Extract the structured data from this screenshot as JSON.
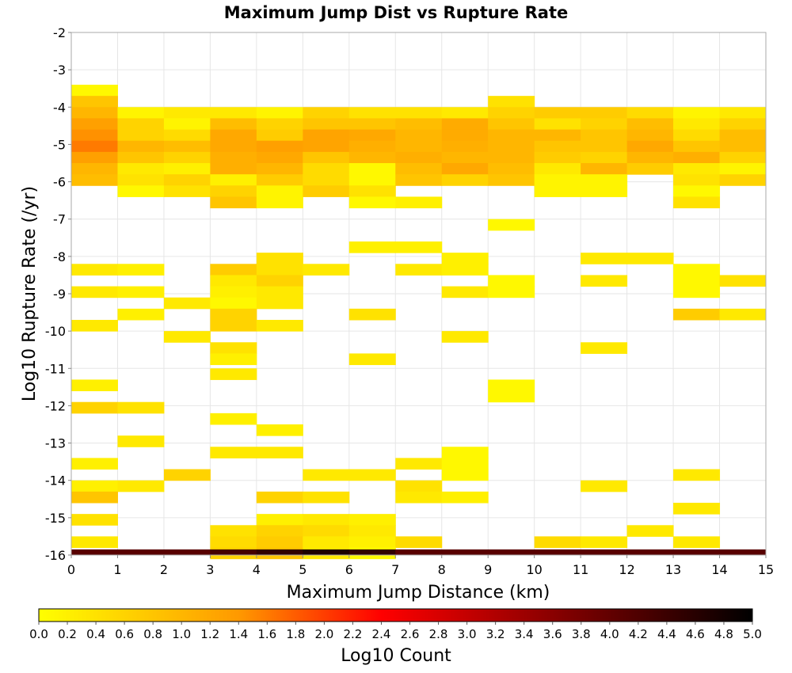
{
  "chart_data": {
    "type": "heatmap",
    "title": "Maximum Jump Dist vs Rupture Rate",
    "xlabel": "Maximum Jump Distance (km)",
    "ylabel": "Log10 Rupture Rate (/yr)",
    "xlim": [
      0,
      15
    ],
    "ylim": [
      -16,
      -2
    ],
    "xticks": [
      "0",
      "1",
      "2",
      "3",
      "4",
      "5",
      "6",
      "7",
      "8",
      "9",
      "10",
      "11",
      "12",
      "13",
      "14",
      "15"
    ],
    "yticks": [
      "-2",
      "-3",
      "-4",
      "-5",
      "-6",
      "-7",
      "-8",
      "-9",
      "-10",
      "-11",
      "-12",
      "-13",
      "-14",
      "-15",
      "-16"
    ],
    "x_bin_width": 1,
    "y_bin_height": 0.3,
    "colorbar": {
      "label": "Log10 Count",
      "min": 0.0,
      "max": 5.0,
      "ticks": [
        "0.0",
        "0.2",
        "0.4",
        "0.6",
        "0.8",
        "1.0",
        "1.2",
        "1.4",
        "1.6",
        "1.8",
        "2.0",
        "2.2",
        "2.4",
        "2.6",
        "2.8",
        "3.0",
        "3.2",
        "3.4",
        "3.6",
        "3.8",
        "4.0",
        "4.2",
        "4.4",
        "4.6",
        "4.8",
        "5.0"
      ],
      "colors": [
        "#ffff00",
        "#ff9900",
        "#ff0000",
        "#000000"
      ]
    },
    "cells": [
      [
        0,
        -3.55,
        0.1
      ],
      [
        0,
        -3.85,
        0.8
      ],
      [
        0,
        -4.15,
        1.0
      ],
      [
        0,
        -4.45,
        1.3
      ],
      [
        0,
        -4.75,
        1.45
      ],
      [
        0,
        -5.05,
        1.6
      ],
      [
        0,
        -5.35,
        1.3
      ],
      [
        0,
        -5.65,
        1.0
      ],
      [
        0,
        -5.95,
        0.9
      ],
      [
        1,
        -4.15,
        0.15
      ],
      [
        1,
        -4.45,
        0.6
      ],
      [
        1,
        -4.75,
        0.6
      ],
      [
        1,
        -5.05,
        1.0
      ],
      [
        1,
        -5.35,
        0.8
      ],
      [
        1,
        -5.65,
        0.3
      ],
      [
        1,
        -5.95,
        0.4
      ],
      [
        1,
        -6.25,
        0.1
      ],
      [
        2,
        -4.15,
        0.3
      ],
      [
        2,
        -4.45,
        0.15
      ],
      [
        2,
        -4.75,
        0.5
      ],
      [
        2,
        -5.05,
        0.9
      ],
      [
        2,
        -5.35,
        0.6
      ],
      [
        2,
        -5.65,
        0.2
      ],
      [
        2,
        -5.95,
        0.6
      ],
      [
        2,
        -6.25,
        0.4
      ],
      [
        3,
        -4.15,
        0.3
      ],
      [
        3,
        -4.45,
        0.9
      ],
      [
        3,
        -4.75,
        1.2
      ],
      [
        3,
        -5.05,
        1.2
      ],
      [
        3,
        -5.35,
        1.1
      ],
      [
        3,
        -5.65,
        1.1
      ],
      [
        3,
        -5.95,
        0.2
      ],
      [
        3,
        -6.25,
        0.6
      ],
      [
        3,
        -6.55,
        0.8
      ],
      [
        4,
        -4.15,
        0.15
      ],
      [
        4,
        -4.45,
        0.6
      ],
      [
        4,
        -4.75,
        0.7
      ],
      [
        4,
        -5.05,
        1.3
      ],
      [
        4,
        -5.35,
        1.2
      ],
      [
        4,
        -5.65,
        1.0
      ],
      [
        4,
        -5.95,
        0.7
      ],
      [
        4,
        -6.25,
        0.15
      ],
      [
        4,
        -6.55,
        0.15
      ],
      [
        5,
        -4.15,
        0.6
      ],
      [
        5,
        -4.45,
        0.8
      ],
      [
        5,
        -4.75,
        1.25
      ],
      [
        5,
        -5.05,
        1.25
      ],
      [
        5,
        -5.35,
        0.8
      ],
      [
        5,
        -5.65,
        0.5
      ],
      [
        5,
        -5.95,
        0.5
      ],
      [
        5,
        -6.25,
        0.7
      ],
      [
        6,
        -4.15,
        0.4
      ],
      [
        6,
        -4.45,
        0.8
      ],
      [
        6,
        -4.75,
        1.2
      ],
      [
        6,
        -5.05,
        1.1
      ],
      [
        6,
        -5.35,
        1.0
      ],
      [
        6,
        -5.65,
        0.1
      ],
      [
        6,
        -5.95,
        0.1
      ],
      [
        6,
        -6.25,
        0.4
      ],
      [
        6,
        -6.55,
        0.1
      ],
      [
        7,
        -4.15,
        0.4
      ],
      [
        7,
        -4.45,
        0.9
      ],
      [
        7,
        -4.75,
        1.0
      ],
      [
        7,
        -5.05,
        1.0
      ],
      [
        7,
        -5.35,
        1.1
      ],
      [
        7,
        -5.65,
        0.9
      ],
      [
        7,
        -5.95,
        0.8
      ],
      [
        7,
        -6.55,
        0.2
      ],
      [
        8,
        -4.15,
        0.3
      ],
      [
        8,
        -4.45,
        1.15
      ],
      [
        8,
        -4.75,
        1.15
      ],
      [
        8,
        -5.05,
        1.1
      ],
      [
        8,
        -5.35,
        1.0
      ],
      [
        8,
        -5.65,
        1.2
      ],
      [
        8,
        -5.95,
        0.6
      ],
      [
        9,
        -3.85,
        0.4
      ],
      [
        9,
        -4.15,
        0.6
      ],
      [
        9,
        -4.45,
        0.8
      ],
      [
        9,
        -4.75,
        1.0
      ],
      [
        9,
        -5.05,
        1.0
      ],
      [
        9,
        -5.35,
        1.0
      ],
      [
        9,
        -5.65,
        0.9
      ],
      [
        9,
        -5.95,
        0.8
      ],
      [
        10,
        -4.15,
        0.7
      ],
      [
        10,
        -4.45,
        0.4
      ],
      [
        10,
        -4.75,
        1.0
      ],
      [
        10,
        -5.05,
        0.8
      ],
      [
        10,
        -5.35,
        0.7
      ],
      [
        10,
        -5.65,
        0.3
      ],
      [
        10,
        -5.95,
        0.15
      ],
      [
        10,
        -6.25,
        0.15
      ],
      [
        11,
        -4.15,
        0.7
      ],
      [
        11,
        -4.45,
        0.6
      ],
      [
        11,
        -4.75,
        0.8
      ],
      [
        11,
        -5.05,
        0.8
      ],
      [
        11,
        -5.35,
        0.6
      ],
      [
        11,
        -5.65,
        1.0
      ],
      [
        11,
        -5.95,
        0.15
      ],
      [
        11,
        -6.25,
        0.15
      ],
      [
        12,
        -4.15,
        0.5
      ],
      [
        12,
        -4.45,
        0.9
      ],
      [
        12,
        -4.75,
        1.0
      ],
      [
        12,
        -5.05,
        1.2
      ],
      [
        12,
        -5.35,
        1.0
      ],
      [
        12,
        -5.65,
        0.7
      ],
      [
        13,
        -4.15,
        0.15
      ],
      [
        13,
        -4.45,
        0.3
      ],
      [
        13,
        -4.75,
        0.5
      ],
      [
        13,
        -5.05,
        0.8
      ],
      [
        13,
        -5.35,
        1.1
      ],
      [
        13,
        -5.65,
        0.3
      ],
      [
        13,
        -5.95,
        0.4
      ],
      [
        13,
        -6.25,
        0.1
      ],
      [
        13,
        -6.55,
        0.4
      ],
      [
        14,
        -4.15,
        0.3
      ],
      [
        14,
        -4.45,
        0.6
      ],
      [
        14,
        -4.75,
        0.9
      ],
      [
        14,
        -5.05,
        0.9
      ],
      [
        14,
        -5.35,
        0.6
      ],
      [
        14,
        -5.65,
        0.15
      ],
      [
        14,
        -5.95,
        0.6
      ],
      [
        6,
        -7.75,
        0.2
      ],
      [
        7,
        -7.75,
        0.2
      ],
      [
        9,
        -7.15,
        0.1
      ],
      [
        4,
        -8.05,
        0.4
      ],
      [
        8,
        -8.05,
        0.2
      ],
      [
        11,
        -8.05,
        0.3
      ],
      [
        12,
        -8.05,
        0.3
      ],
      [
        0,
        -8.35,
        0.3
      ],
      [
        1,
        -8.35,
        0.2
      ],
      [
        3,
        -8.35,
        0.7
      ],
      [
        4,
        -8.35,
        0.4
      ],
      [
        5,
        -8.35,
        0.3
      ],
      [
        7,
        -8.35,
        0.3
      ],
      [
        8,
        -8.35,
        0.2
      ],
      [
        13,
        -8.35,
        0.1
      ],
      [
        3,
        -8.65,
        0.3
      ],
      [
        4,
        -8.65,
        0.6
      ],
      [
        9,
        -8.65,
        0.1
      ],
      [
        11,
        -8.65,
        0.3
      ],
      [
        13,
        -8.65,
        0.1
      ],
      [
        14,
        -8.65,
        0.4
      ],
      [
        0,
        -8.95,
        0.3
      ],
      [
        1,
        -8.95,
        0.2
      ],
      [
        3,
        -8.95,
        0.2
      ],
      [
        4,
        -8.95,
        0.3
      ],
      [
        8,
        -8.95,
        0.3
      ],
      [
        9,
        -8.95,
        0.1
      ],
      [
        13,
        -8.95,
        0.1
      ],
      [
        2,
        -9.25,
        0.3
      ],
      [
        3,
        -9.25,
        0.1
      ],
      [
        4,
        -9.25,
        0.3
      ],
      [
        1,
        -9.55,
        0.2
      ],
      [
        3,
        -9.55,
        0.6
      ],
      [
        6,
        -9.55,
        0.4
      ],
      [
        13,
        -9.55,
        0.7
      ],
      [
        14,
        -9.55,
        0.3
      ],
      [
        0,
        -9.85,
        0.3
      ],
      [
        3,
        -9.85,
        0.6
      ],
      [
        4,
        -9.85,
        0.3
      ],
      [
        2,
        -10.15,
        0.3
      ],
      [
        8,
        -10.15,
        0.3
      ],
      [
        3,
        -10.45,
        0.4
      ],
      [
        11,
        -10.45,
        0.3
      ],
      [
        3,
        -10.75,
        0.2
      ],
      [
        6,
        -10.75,
        0.3
      ],
      [
        3,
        -11.15,
        0.3
      ],
      [
        0,
        -11.45,
        0.2
      ],
      [
        9,
        -11.45,
        0.1
      ],
      [
        9,
        -11.75,
        0.1
      ],
      [
        0,
        -12.05,
        0.6
      ],
      [
        1,
        -12.05,
        0.4
      ],
      [
        3,
        -12.35,
        0.2
      ],
      [
        4,
        -12.65,
        0.2
      ],
      [
        1,
        -12.95,
        0.3
      ],
      [
        3,
        -13.25,
        0.3
      ],
      [
        4,
        -13.25,
        0.3
      ],
      [
        8,
        -13.25,
        0.1
      ],
      [
        0,
        -13.55,
        0.2
      ],
      [
        7,
        -13.55,
        0.3
      ],
      [
        8,
        -13.55,
        0.1
      ],
      [
        2,
        -13.85,
        0.6
      ],
      [
        5,
        -13.85,
        0.3
      ],
      [
        6,
        -13.85,
        0.3
      ],
      [
        8,
        -13.85,
        0.1
      ],
      [
        13,
        -13.85,
        0.3
      ],
      [
        0,
        -14.15,
        0.2
      ],
      [
        1,
        -14.15,
        0.3
      ],
      [
        7,
        -14.15,
        0.4
      ],
      [
        11,
        -14.15,
        0.3
      ],
      [
        0,
        -14.45,
        0.8
      ],
      [
        4,
        -14.45,
        0.6
      ],
      [
        5,
        -14.45,
        0.4
      ],
      [
        7,
        -14.45,
        0.3
      ],
      [
        8,
        -14.45,
        0.2
      ],
      [
        13,
        -14.75,
        0.3
      ],
      [
        0,
        -15.05,
        0.4
      ],
      [
        4,
        -15.05,
        0.2
      ],
      [
        5,
        -15.05,
        0.3
      ],
      [
        6,
        -15.05,
        0.2
      ],
      [
        3,
        -15.35,
        0.4
      ],
      [
        4,
        -15.35,
        0.6
      ],
      [
        5,
        -15.35,
        0.5
      ],
      [
        6,
        -15.35,
        0.3
      ],
      [
        12,
        -15.35,
        0.3
      ],
      [
        0,
        -15.65,
        0.3
      ],
      [
        3,
        -15.65,
        0.5
      ],
      [
        4,
        -15.65,
        0.7
      ],
      [
        5,
        -15.65,
        0.3
      ],
      [
        6,
        -15.65,
        0.2
      ],
      [
        7,
        -15.65,
        0.5
      ],
      [
        10,
        -15.65,
        0.5
      ],
      [
        11,
        -15.65,
        0.3
      ],
      [
        13,
        -15.65,
        0.3
      ],
      [
        3,
        -15.95,
        0.6
      ],
      [
        4,
        -15.95,
        0.8
      ],
      [
        5,
        -15.95,
        0.3
      ],
      [
        6,
        -15.95,
        0.1
      ]
    ],
    "floor_row": {
      "y": -15.95,
      "height": 0.15,
      "values": [
        4.1,
        4.1,
        4.1,
        4.3,
        4.5,
        4.7,
        4.5,
        4.1,
        4.1,
        4.1,
        4.1,
        4.1,
        4.1,
        4.1,
        4.1
      ]
    }
  }
}
